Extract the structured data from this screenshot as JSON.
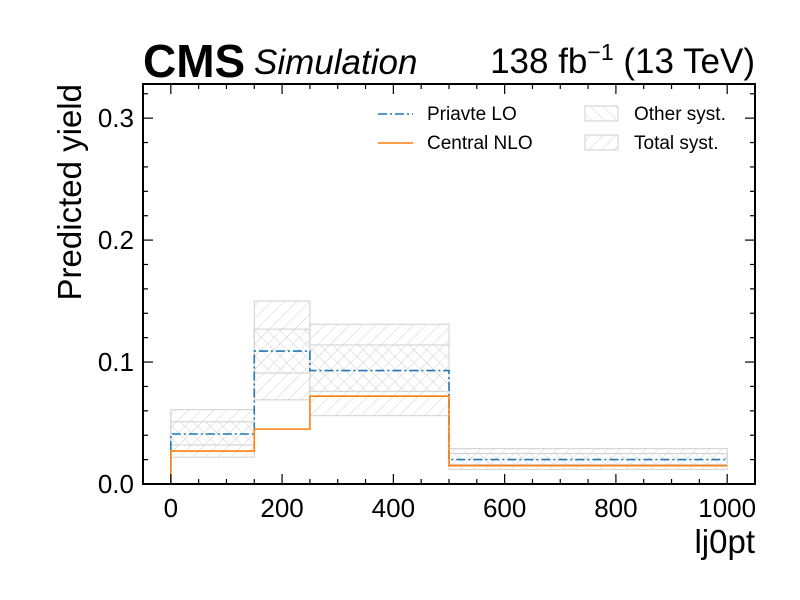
{
  "header": {
    "experiment": "CMS",
    "tag": "Simulation",
    "lumi_main": "138 fb",
    "lumi_exp": "−1",
    "lumi_rest": " (13 TeV)"
  },
  "chart_data": {
    "type": "step",
    "xlabel": "lj0pt",
    "ylabel": "Predicted yield",
    "xlim": [
      -50,
      1050
    ],
    "ylim": [
      0,
      0.328
    ],
    "x_ticks": [
      0,
      200,
      400,
      600,
      800,
      1000
    ],
    "x_tick_labels": [
      "0",
      "200",
      "400",
      "600",
      "800",
      "1000"
    ],
    "y_ticks": [
      0.0,
      0.1,
      0.2,
      0.3
    ],
    "y_tick_labels": [
      "0.0",
      "0.1",
      "0.2",
      "0.3"
    ],
    "bin_edges": [
      0,
      150,
      250,
      500,
      1000
    ],
    "series": [
      {
        "name": "Priavte LO",
        "color": "#1f77b4",
        "style": "dashdot",
        "values": [
          0.041,
          0.109,
          0.093,
          0.02
        ]
      },
      {
        "name": "Central NLO",
        "color": "#ff7f0e",
        "style": "solid",
        "values": [
          0.027,
          0.045,
          0.072,
          0.015
        ]
      }
    ],
    "bands": [
      {
        "name": "Other syst.",
        "hatch": "////",
        "color": "#cccccc",
        "lower": [
          0.032,
          0.091,
          0.076,
          0.016
        ],
        "upper": [
          0.051,
          0.127,
          0.114,
          0.025
        ]
      },
      {
        "name": "Total syst.",
        "hatch": "\\\\\\\\",
        "color": "#cccccc",
        "lower": [
          0.022,
          0.069,
          0.056,
          0.012
        ],
        "upper": [
          0.061,
          0.15,
          0.131,
          0.029
        ]
      }
    ],
    "legend": {
      "position": "top-right",
      "columns": 2
    },
    "grid": false
  }
}
